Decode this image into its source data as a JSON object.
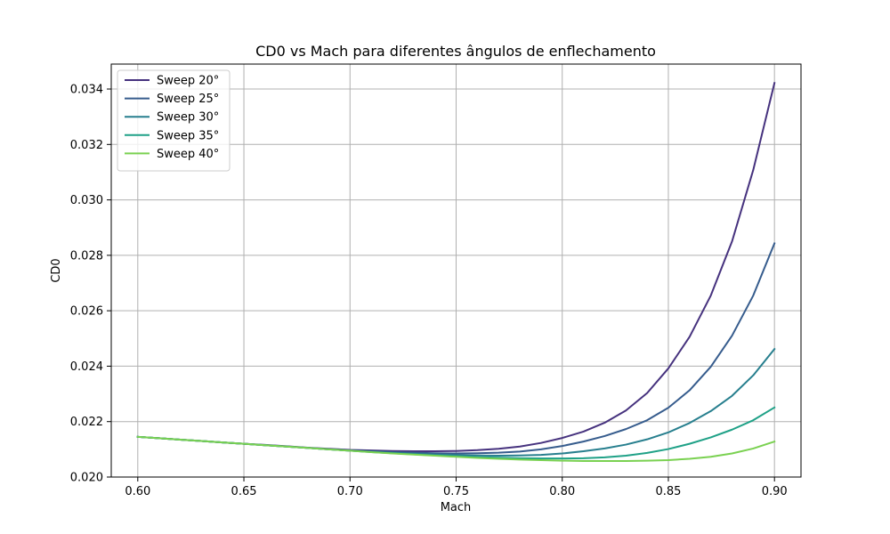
{
  "chart_data": {
    "type": "line",
    "title": "CD0 vs Mach para diferentes ângulos de enflechamento",
    "xlabel": "Mach",
    "ylabel": "CD0",
    "xlim": [
      0.5875,
      0.9125
    ],
    "ylim": [
      0.02,
      0.0349
    ],
    "xticks": [
      0.6,
      0.65,
      0.7,
      0.75,
      0.8,
      0.85,
      0.9
    ],
    "xtick_labels": [
      "0.60",
      "0.65",
      "0.70",
      "0.75",
      "0.80",
      "0.85",
      "0.90"
    ],
    "yticks": [
      0.02,
      0.022,
      0.024,
      0.026,
      0.028,
      0.03,
      0.032,
      0.034
    ],
    "ytick_labels": [
      "0.020",
      "0.022",
      "0.024",
      "0.026",
      "0.028",
      "0.030",
      "0.032",
      "0.034"
    ],
    "grid": true,
    "legend_position": "top-left",
    "x": [
      0.6,
      0.61,
      0.62,
      0.63,
      0.64,
      0.65,
      0.66,
      0.67,
      0.68,
      0.69,
      0.7,
      0.71,
      0.72,
      0.73,
      0.74,
      0.75,
      0.76,
      0.77,
      0.78,
      0.79,
      0.8,
      0.81,
      0.82,
      0.83,
      0.84,
      0.85,
      0.86,
      0.87,
      0.88,
      0.89,
      0.9
    ],
    "series": [
      {
        "name": "Sweep 20°",
        "color": "#46327e",
        "values": [
          0.02145,
          0.0214,
          0.02135,
          0.0213,
          0.02125,
          0.0212,
          0.02116,
          0.02111,
          0.02106,
          0.02102,
          0.02098,
          0.02096,
          0.02094,
          0.02093,
          0.02093,
          0.02094,
          0.02097,
          0.02102,
          0.0211,
          0.02123,
          0.02141,
          0.02164,
          0.02196,
          0.0224,
          0.02303,
          0.02392,
          0.02506,
          0.02655,
          0.0285,
          0.03108,
          0.03422
        ]
      },
      {
        "name": "Sweep 25°",
        "color": "#365c8d",
        "values": [
          0.02145,
          0.0214,
          0.02135,
          0.0213,
          0.02125,
          0.0212,
          0.02115,
          0.0211,
          0.02105,
          0.021,
          0.02096,
          0.02093,
          0.0209,
          0.02088,
          0.02086,
          0.02085,
          0.02086,
          0.02088,
          0.02092,
          0.021,
          0.02112,
          0.02128,
          0.02148,
          0.02173,
          0.02205,
          0.0225,
          0.02313,
          0.02398,
          0.0251,
          0.02655,
          0.02843
        ]
      },
      {
        "name": "Sweep 30°",
        "color": "#277f8e",
        "values": [
          0.02145,
          0.0214,
          0.02135,
          0.0213,
          0.02125,
          0.0212,
          0.02115,
          0.0211,
          0.02105,
          0.021,
          0.02095,
          0.02091,
          0.02087,
          0.02084,
          0.02081,
          0.02079,
          0.02078,
          0.02077,
          0.02078,
          0.0208,
          0.02085,
          0.02093,
          0.02103,
          0.02117,
          0.02136,
          0.02161,
          0.02195,
          0.02238,
          0.02293,
          0.02367,
          0.02462
        ]
      },
      {
        "name": "Sweep 35°",
        "color": "#1fa187",
        "values": [
          0.02145,
          0.0214,
          0.02135,
          0.0213,
          0.02125,
          0.0212,
          0.02115,
          0.0211,
          0.02105,
          0.021,
          0.02095,
          0.0209,
          0.02086,
          0.02082,
          0.02078,
          0.02075,
          0.02072,
          0.0207,
          0.02068,
          0.02067,
          0.02067,
          0.02068,
          0.02071,
          0.02077,
          0.02087,
          0.02101,
          0.0212,
          0.02143,
          0.02171,
          0.02205,
          0.02251
        ]
      },
      {
        "name": "Sweep 40°",
        "color": "#7ad151",
        "values": [
          0.02145,
          0.0214,
          0.02135,
          0.0213,
          0.02125,
          0.0212,
          0.02115,
          0.0211,
          0.02105,
          0.021,
          0.02095,
          0.0209,
          0.02085,
          0.02081,
          0.02077,
          0.02073,
          0.02069,
          0.02066,
          0.02063,
          0.02061,
          0.02059,
          0.02058,
          0.02058,
          0.02058,
          0.02059,
          0.02061,
          0.02066,
          0.02073,
          0.02085,
          0.02103,
          0.02128
        ]
      }
    ]
  }
}
